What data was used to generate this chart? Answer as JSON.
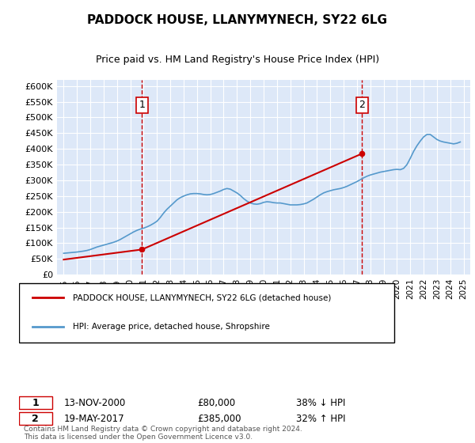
{
  "title": "PADDOCK HOUSE, LLANYMYNECH, SY22 6LG",
  "subtitle": "Price paid vs. HM Land Registry's House Price Index (HPI)",
  "legend_entry1": "PADDOCK HOUSE, LLANYMYNECH, SY22 6LG (detached house)",
  "legend_entry2": "HPI: Average price, detached house, Shropshire",
  "annotation1": {
    "label": "1",
    "date_str": "13-NOV-2000",
    "price": "£80,000",
    "hpi_text": "38% ↓ HPI",
    "x_year": 2000.87,
    "y_val": 80000
  },
  "annotation2": {
    "label": "2",
    "date_str": "19-MAY-2017",
    "price": "£385,000",
    "hpi_text": "32% ↑ HPI",
    "x_year": 2017.38,
    "y_val": 385000
  },
  "footer": "Contains HM Land Registry data © Crown copyright and database right 2024.\nThis data is licensed under the Open Government Licence v3.0.",
  "ylim": [
    0,
    620000
  ],
  "yticks": [
    0,
    50000,
    100000,
    150000,
    200000,
    250000,
    300000,
    350000,
    400000,
    450000,
    500000,
    550000,
    600000
  ],
  "ytick_labels": [
    "£0",
    "£50K",
    "£100K",
    "£150K",
    "£200K",
    "£250K",
    "£300K",
    "£350K",
    "£400K",
    "£450K",
    "£500K",
    "£550K",
    "£600K"
  ],
  "xlim_start": 1994.5,
  "xlim_end": 2025.5,
  "bg_color": "#dde8f8",
  "plot_bg": "#dde8f8",
  "red_color": "#cc0000",
  "blue_color": "#5599cc",
  "vline_color": "#cc0000",
  "grid_color": "#ffffff",
  "hpi_data_x": [
    1995.0,
    1995.25,
    1995.5,
    1995.75,
    1996.0,
    1996.25,
    1996.5,
    1996.75,
    1997.0,
    1997.25,
    1997.5,
    1997.75,
    1998.0,
    1998.25,
    1998.5,
    1998.75,
    1999.0,
    1999.25,
    1999.5,
    1999.75,
    2000.0,
    2000.25,
    2000.5,
    2000.75,
    2001.0,
    2001.25,
    2001.5,
    2001.75,
    2002.0,
    2002.25,
    2002.5,
    2002.75,
    2003.0,
    2003.25,
    2003.5,
    2003.75,
    2004.0,
    2004.25,
    2004.5,
    2004.75,
    2005.0,
    2005.25,
    2005.5,
    2005.75,
    2006.0,
    2006.25,
    2006.5,
    2006.75,
    2007.0,
    2007.25,
    2007.5,
    2007.75,
    2008.0,
    2008.25,
    2008.5,
    2008.75,
    2009.0,
    2009.25,
    2009.5,
    2009.75,
    2010.0,
    2010.25,
    2010.5,
    2010.75,
    2011.0,
    2011.25,
    2011.5,
    2011.75,
    2012.0,
    2012.25,
    2012.5,
    2012.75,
    2013.0,
    2013.25,
    2013.5,
    2013.75,
    2014.0,
    2014.25,
    2014.5,
    2014.75,
    2015.0,
    2015.25,
    2015.5,
    2015.75,
    2016.0,
    2016.25,
    2016.5,
    2016.75,
    2017.0,
    2017.25,
    2017.5,
    2017.75,
    2018.0,
    2018.25,
    2018.5,
    2018.75,
    2019.0,
    2019.25,
    2019.5,
    2019.75,
    2020.0,
    2020.25,
    2020.5,
    2020.75,
    2021.0,
    2021.25,
    2021.5,
    2021.75,
    2022.0,
    2022.25,
    2022.5,
    2022.75,
    2023.0,
    2023.25,
    2023.5,
    2023.75,
    2024.0,
    2024.25,
    2024.5,
    2024.75
  ],
  "hpi_data_y": [
    68000,
    69000,
    70000,
    71000,
    72000,
    73500,
    75000,
    77000,
    80000,
    84000,
    88000,
    91000,
    94000,
    97000,
    100000,
    103000,
    107000,
    112000,
    118000,
    124000,
    130000,
    136000,
    141000,
    145000,
    148000,
    152000,
    157000,
    163000,
    170000,
    182000,
    196000,
    208000,
    218000,
    228000,
    238000,
    245000,
    250000,
    254000,
    257000,
    258000,
    258000,
    257000,
    255000,
    254000,
    255000,
    258000,
    262000,
    266000,
    271000,
    274000,
    272000,
    266000,
    260000,
    252000,
    242000,
    234000,
    228000,
    225000,
    224000,
    226000,
    230000,
    232000,
    231000,
    229000,
    228000,
    228000,
    226000,
    224000,
    222000,
    222000,
    222000,
    223000,
    225000,
    228000,
    234000,
    240000,
    247000,
    254000,
    260000,
    264000,
    267000,
    270000,
    272000,
    274000,
    277000,
    281000,
    286000,
    291000,
    296000,
    302000,
    308000,
    313000,
    317000,
    320000,
    323000,
    326000,
    328000,
    330000,
    332000,
    334000,
    335000,
    334000,
    338000,
    350000,
    370000,
    392000,
    410000,
    425000,
    438000,
    446000,
    446000,
    438000,
    430000,
    425000,
    422000,
    420000,
    418000,
    416000,
    418000,
    422000
  ],
  "price_data_x": [
    1995.0,
    2000.87,
    2017.38
  ],
  "price_data_y": [
    48000,
    80000,
    385000
  ],
  "xticks": [
    1995,
    1996,
    1997,
    1998,
    1999,
    2000,
    2001,
    2002,
    2003,
    2004,
    2005,
    2006,
    2007,
    2008,
    2009,
    2010,
    2011,
    2012,
    2013,
    2014,
    2015,
    2016,
    2017,
    2018,
    2019,
    2020,
    2021,
    2022,
    2023,
    2024,
    2025
  ]
}
